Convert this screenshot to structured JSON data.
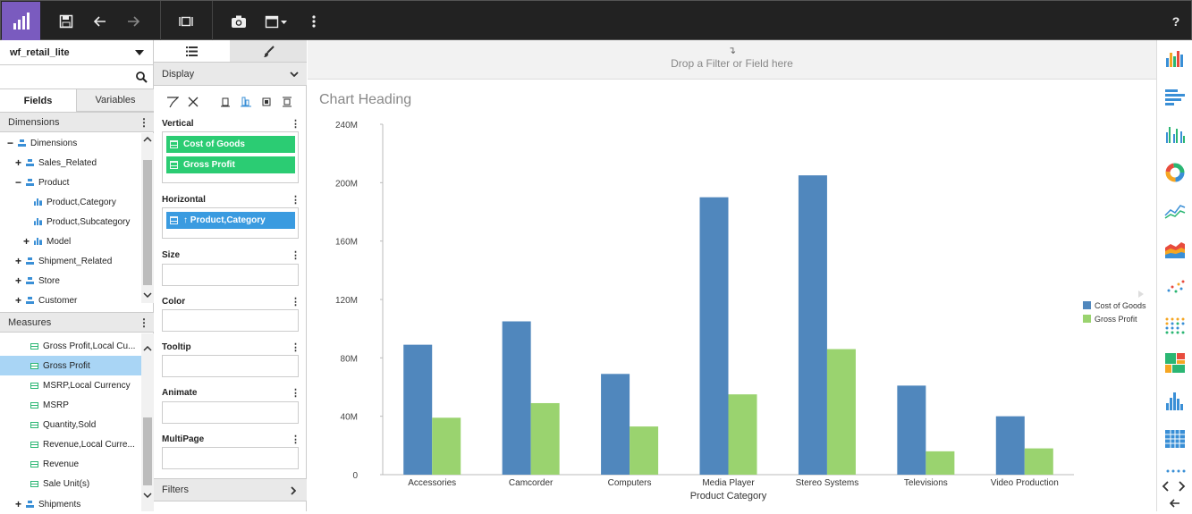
{
  "toolbar": {
    "help_label": "?"
  },
  "left": {
    "datasource": "wf_retail_lite",
    "tabs": [
      "Fields",
      "Variables"
    ],
    "dimensions_header": "Dimensions",
    "measures_header": "Measures",
    "dimensions": [
      {
        "label": "Dimensions",
        "expander": "−",
        "icon": "dim",
        "indent": 0
      },
      {
        "label": "Sales_Related",
        "expander": "+",
        "icon": "dim",
        "indent": 1
      },
      {
        "label": "Product",
        "expander": "−",
        "icon": "dim",
        "indent": 1
      },
      {
        "label": "Product,Category",
        "expander": "",
        "icon": "bar",
        "indent": 2
      },
      {
        "label": "Product,Subcategory",
        "expander": "",
        "icon": "bar",
        "indent": 2
      },
      {
        "label": "Model",
        "expander": "+",
        "icon": "bar",
        "indent": 2
      },
      {
        "label": "Shipment_Related",
        "expander": "+",
        "icon": "dim",
        "indent": 1
      },
      {
        "label": "Store",
        "expander": "+",
        "icon": "dim",
        "indent": 1
      },
      {
        "label": "Customer",
        "expander": "+",
        "icon": "dim",
        "indent": 1
      }
    ],
    "measures": [
      {
        "label": "Gross Profit,Local Cu...",
        "selected": false
      },
      {
        "label": "Gross Profit",
        "selected": true
      },
      {
        "label": "MSRP,Local Currency",
        "selected": false
      },
      {
        "label": "MSRP",
        "selected": false
      },
      {
        "label": "Quantity,Sold",
        "selected": false
      },
      {
        "label": "Revenue,Local Curre...",
        "selected": false
      },
      {
        "label": "Revenue",
        "selected": false
      },
      {
        "label": "Sale Unit(s)",
        "selected": false
      }
    ],
    "shipments_label": "Shipments"
  },
  "middle": {
    "display_label": "Display",
    "vertical_label": "Vertical",
    "vertical_fields": [
      "Cost of Goods",
      "Gross Profit"
    ],
    "horizontal_label": "Horizontal",
    "horizontal_field": "↑ Product,Category",
    "size_label": "Size",
    "color_label": "Color",
    "tooltip_label": "Tooltip",
    "animate_label": "Animate",
    "multipage_label": "MultiPage",
    "filters_label": "Filters"
  },
  "canvas": {
    "drop_hint": "Drop a Filter or Field here",
    "arrow": "↴"
  },
  "chart_data": {
    "type": "bar",
    "title": "Chart Heading",
    "xlabel": "Product Category",
    "ylabel": "",
    "categories": [
      "Accessories",
      "Camcorder",
      "Computers",
      "Media Player",
      "Stereo Systems",
      "Televisions",
      "Video Production"
    ],
    "series": [
      {
        "name": "Cost of Goods",
        "color": "#5087bd",
        "values": [
          89,
          105,
          69,
          190,
          205,
          61,
          40
        ]
      },
      {
        "name": "Gross Profit",
        "color": "#9ad36f",
        "values": [
          39,
          49,
          33,
          55,
          86,
          16,
          18
        ]
      }
    ],
    "ylim": [
      0,
      240
    ],
    "yticks": [
      "0",
      "40M",
      "80M",
      "120M",
      "160M",
      "200M",
      "240M"
    ],
    "legend": "right",
    "grid": false
  }
}
